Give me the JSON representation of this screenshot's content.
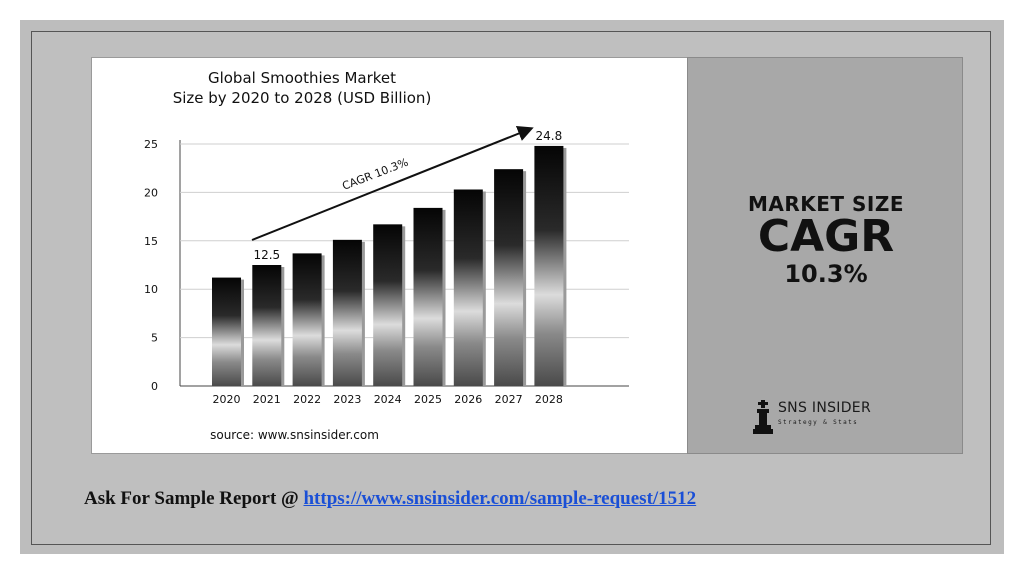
{
  "chart_data": {
    "type": "bar",
    "title_lines": [
      "Global Smoothies Market",
      "Size by 2020 to 2028 (USD Billion)"
    ],
    "categories": [
      "2020",
      "2021",
      "2022",
      "2023",
      "2024",
      "2025",
      "2026",
      "2027",
      "2028"
    ],
    "values": [
      11.2,
      12.5,
      13.7,
      15.1,
      16.7,
      18.4,
      20.3,
      22.4,
      24.8
    ],
    "yticks": [
      0,
      5,
      10,
      15,
      20,
      25
    ],
    "ylim": [
      0,
      25
    ],
    "data_labels": [
      {
        "index": 1,
        "text": "12.5"
      },
      {
        "index": 8,
        "text": "24.8"
      }
    ],
    "annotation": "CAGR 10.3%",
    "source": "source: www.snsinsider.com",
    "grid": true
  },
  "side_panel": {
    "line1": "MARKET SIZE",
    "line2": "CAGR",
    "line3": "10.3%",
    "brand_name": "SNS INSIDER",
    "brand_tagline": "Strategy & Stats"
  },
  "footer": {
    "prefix": "Ask For Sample Report @",
    "link_text": "https://www.snsinsider.com/sample-request/1512"
  },
  "colors": {
    "slide_bg": "#bdbdbd",
    "side_panel_bg": "#a8a8a8",
    "link": "#1a4fd6"
  }
}
